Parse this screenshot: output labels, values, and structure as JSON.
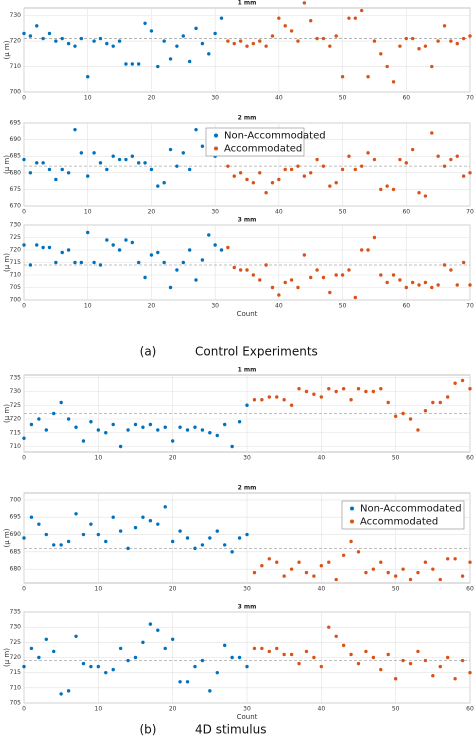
{
  "captions": [
    {
      "label": "(a)",
      "text": "Control Experiments"
    },
    {
      "label": "(b)",
      "text": "4D stimulus"
    }
  ],
  "chart_data": [
    {
      "type": "scatter",
      "title": "1 mm",
      "ylabel": "(μ m)",
      "xlim": [
        0,
        70
      ],
      "xticks": [
        0,
        10,
        20,
        30,
        40,
        50,
        60,
        70
      ],
      "ylim": [
        700,
        733
      ],
      "yticks": [
        700,
        710,
        720,
        730
      ],
      "grid": true,
      "reference_line": 721,
      "series": [
        {
          "name": "Non-Accommodated",
          "color": "#0072bd",
          "x": [
            0,
            1,
            2,
            3,
            4,
            5,
            6,
            7,
            8,
            9,
            10,
            11,
            12,
            13,
            14,
            15,
            16,
            17,
            18,
            19,
            20,
            21,
            22,
            23,
            24,
            25,
            26,
            27,
            28,
            29,
            30,
            31
          ],
          "values": [
            723,
            722,
            726,
            721,
            723,
            720,
            721,
            719,
            718,
            721,
            706,
            720,
            721,
            719,
            718,
            720,
            711,
            711,
            711,
            727,
            724,
            710,
            720,
            713,
            718,
            722,
            712,
            725,
            719,
            715,
            723,
            729
          ]
        },
        {
          "name": "Accommodated",
          "color": "#d95319",
          "x": [
            32,
            33,
            34,
            35,
            36,
            37,
            38,
            39,
            40,
            41,
            42,
            43,
            44,
            45,
            46,
            47,
            48,
            49,
            50,
            51,
            52,
            53,
            54,
            55,
            56,
            57,
            58,
            59,
            60,
            61,
            62,
            63,
            64,
            65,
            66,
            67,
            68,
            69,
            70
          ],
          "values": [
            720,
            719,
            720,
            718,
            719,
            720,
            718,
            722,
            729,
            726,
            724,
            720,
            735,
            728,
            721,
            721,
            718,
            722,
            706,
            729,
            729,
            732,
            706,
            720,
            715,
            710,
            704,
            718,
            721,
            721,
            717,
            718,
            710,
            720,
            726,
            720,
            719,
            721,
            722
          ]
        }
      ]
    },
    {
      "type": "scatter",
      "title": "2 mm",
      "ylabel": "(μ m)",
      "xlim": [
        0,
        70
      ],
      "xticks": [
        0,
        10,
        20,
        30,
        40,
        50,
        60,
        70
      ],
      "ylim": [
        670,
        695
      ],
      "yticks": [
        670,
        675,
        680,
        685,
        690,
        695
      ],
      "grid": true,
      "reference_line": 682,
      "legend": "center",
      "series": [
        {
          "name": "Non-Accommodated",
          "color": "#0072bd",
          "x": [
            0,
            1,
            2,
            3,
            4,
            5,
            6,
            7,
            8,
            9,
            10,
            11,
            12,
            13,
            14,
            15,
            16,
            17,
            18,
            19,
            20,
            21,
            22,
            23,
            24,
            25,
            26,
            27,
            28,
            29,
            30,
            31
          ],
          "values": [
            684,
            680,
            683,
            683,
            681,
            678,
            681,
            680,
            693,
            686,
            679,
            686,
            683,
            681,
            685,
            684,
            684,
            685,
            683,
            683,
            681,
            676,
            677,
            687,
            682,
            686,
            681,
            693,
            688,
            690,
            685,
            688
          ]
        },
        {
          "name": "Accommodated",
          "color": "#d95319",
          "x": [
            32,
            33,
            34,
            35,
            36,
            37,
            38,
            39,
            40,
            41,
            42,
            43,
            44,
            45,
            46,
            47,
            48,
            49,
            50,
            51,
            52,
            53,
            54,
            55,
            56,
            57,
            58,
            59,
            60,
            61,
            62,
            63,
            64,
            65,
            66,
            67,
            68,
            69,
            70
          ],
          "values": [
            682,
            679,
            680,
            678,
            677,
            680,
            674,
            677,
            678,
            681,
            681,
            682,
            679,
            680,
            684,
            682,
            676,
            677,
            681,
            685,
            681,
            682,
            686,
            684,
            675,
            676,
            675,
            684,
            683,
            687,
            674,
            673,
            692,
            685,
            682,
            684,
            685,
            679,
            680
          ]
        }
      ]
    },
    {
      "type": "scatter",
      "title": "3 mm",
      "ylabel": "(μ m)",
      "xlabel": "Count",
      "xlim": [
        0,
        70
      ],
      "xticks": [
        0,
        10,
        20,
        30,
        40,
        50,
        60,
        70
      ],
      "ylim": [
        700,
        730
      ],
      "yticks": [
        700,
        705,
        710,
        715,
        720,
        725,
        730
      ],
      "grid": true,
      "reference_line": 714,
      "series": [
        {
          "name": "Non-Accommodated",
          "color": "#0072bd",
          "x": [
            0,
            1,
            2,
            3,
            4,
            5,
            6,
            7,
            8,
            9,
            10,
            11,
            12,
            13,
            14,
            15,
            16,
            17,
            18,
            19,
            20,
            21,
            22,
            23,
            24,
            25,
            26,
            27,
            28,
            29,
            30,
            31
          ],
          "values": [
            722,
            714,
            722,
            721,
            721,
            715,
            719,
            720,
            715,
            715,
            727,
            715,
            714,
            724,
            722,
            720,
            724,
            723,
            715,
            709,
            718,
            719,
            715,
            705,
            712,
            715,
            720,
            708,
            716,
            726,
            722,
            720
          ]
        },
        {
          "name": "Accommodated",
          "color": "#d95319",
          "x": [
            32,
            33,
            34,
            35,
            36,
            37,
            38,
            39,
            40,
            41,
            42,
            43,
            44,
            45,
            46,
            47,
            48,
            49,
            50,
            51,
            52,
            53,
            54,
            55,
            56,
            57,
            58,
            59,
            60,
            61,
            62,
            63,
            64,
            65,
            66,
            67,
            68,
            69,
            70
          ],
          "values": [
            721,
            713,
            712,
            712,
            710,
            708,
            714,
            705,
            702,
            707,
            708,
            705,
            718,
            709,
            712,
            709,
            703,
            710,
            710,
            712,
            701,
            720,
            720,
            725,
            710,
            707,
            710,
            708,
            705,
            707,
            706,
            707,
            705,
            706,
            714,
            712,
            706,
            715,
            706
          ]
        }
      ]
    },
    {
      "type": "scatter",
      "title": "1 mm",
      "ylabel": "(μ m)",
      "xlim": [
        0,
        60
      ],
      "xticks": [
        0,
        10,
        20,
        30,
        40,
        50,
        60
      ],
      "ylim": [
        708,
        736
      ],
      "yticks": [
        710,
        715,
        720,
        725,
        730,
        735
      ],
      "grid": true,
      "reference_line": 722,
      "series": [
        {
          "name": "Non-Accommodated",
          "color": "#0072bd",
          "x": [
            0,
            1,
            2,
            3,
            4,
            5,
            6,
            7,
            8,
            9,
            10,
            11,
            12,
            13,
            14,
            15,
            16,
            17,
            18,
            19,
            20,
            21,
            22,
            23,
            24,
            25,
            26,
            27,
            28,
            29,
            30
          ],
          "values": [
            713,
            718,
            720,
            716,
            722,
            726,
            720,
            717,
            712,
            719,
            716,
            715,
            718,
            710,
            716,
            718,
            717,
            718,
            716,
            717,
            712,
            717,
            716,
            717,
            716,
            715,
            714,
            718,
            710,
            719,
            725
          ]
        },
        {
          "name": "Accommodated",
          "color": "#d95319",
          "x": [
            31,
            32,
            33,
            34,
            35,
            36,
            37,
            38,
            39,
            40,
            41,
            42,
            43,
            44,
            45,
            46,
            47,
            48,
            49,
            50,
            51,
            52,
            53,
            54,
            55,
            56,
            57,
            58,
            59,
            60
          ],
          "values": [
            727,
            727,
            728,
            728,
            727,
            725,
            731,
            730,
            729,
            728,
            731,
            730,
            731,
            727,
            731,
            730,
            730,
            731,
            726,
            721,
            722,
            720,
            716,
            723,
            726,
            726,
            728,
            733,
            734,
            731
          ]
        }
      ]
    },
    {
      "type": "scatter",
      "title": "2 mm",
      "ylabel": "(μ m)",
      "xlim": [
        0,
        60
      ],
      "xticks": [
        0,
        10,
        20,
        30,
        40,
        50,
        60
      ],
      "ylim": [
        676,
        702
      ],
      "yticks": [
        680,
        685,
        690,
        695,
        700
      ],
      "grid": true,
      "reference_line": 686,
      "legend": "right",
      "series": [
        {
          "name": "Non-Accommodated",
          "color": "#0072bd",
          "x": [
            0,
            1,
            2,
            3,
            4,
            5,
            6,
            7,
            8,
            9,
            10,
            11,
            12,
            13,
            14,
            15,
            16,
            17,
            18,
            19,
            20,
            21,
            22,
            23,
            24,
            25,
            26,
            27,
            28,
            29,
            30
          ],
          "values": [
            689,
            695,
            693,
            690,
            687,
            687,
            688,
            696,
            690,
            693,
            690,
            688,
            695,
            691,
            686,
            692,
            695,
            694,
            693,
            698,
            688,
            691,
            689,
            686,
            687,
            689,
            691,
            687,
            685,
            689,
            690
          ]
        },
        {
          "name": "Accommodated",
          "color": "#d95319",
          "x": [
            31,
            32,
            33,
            34,
            35,
            36,
            37,
            38,
            39,
            40,
            41,
            42,
            43,
            44,
            45,
            46,
            47,
            48,
            49,
            50,
            51,
            52,
            53,
            54,
            55,
            56,
            57,
            58,
            59,
            60
          ],
          "values": [
            679,
            681,
            683,
            682,
            678,
            680,
            682,
            679,
            678,
            681,
            682,
            677,
            684,
            688,
            685,
            679,
            680,
            682,
            679,
            678,
            680,
            677,
            679,
            682,
            680,
            677,
            683,
            683,
            678,
            682
          ]
        }
      ]
    },
    {
      "type": "scatter",
      "title": "3 mm",
      "ylabel": "(μ m)",
      "xlabel": "Count",
      "xlim": [
        0,
        60
      ],
      "xticks": [
        0,
        10,
        20,
        30,
        40,
        50,
        60
      ],
      "ylim": [
        705,
        735
      ],
      "yticks": [
        705,
        710,
        715,
        720,
        725,
        730,
        735
      ],
      "grid": true,
      "reference_line": 719,
      "series": [
        {
          "name": "Non-Accommodated",
          "color": "#0072bd",
          "x": [
            0,
            1,
            2,
            3,
            4,
            5,
            6,
            7,
            8,
            9,
            10,
            11,
            12,
            13,
            14,
            15,
            16,
            17,
            18,
            19,
            20,
            21,
            22,
            23,
            24,
            25,
            26,
            27,
            28,
            29,
            30
          ],
          "values": [
            717,
            723,
            720,
            726,
            722,
            708,
            709,
            727,
            718,
            717,
            717,
            715,
            716,
            723,
            719,
            720,
            725,
            731,
            729,
            723,
            726,
            712,
            712,
            717,
            719,
            709,
            715,
            724,
            720,
            720,
            717
          ]
        },
        {
          "name": "Accommodated",
          "color": "#d95319",
          "x": [
            31,
            32,
            33,
            34,
            35,
            36,
            37,
            38,
            39,
            40,
            41,
            42,
            43,
            44,
            45,
            46,
            47,
            48,
            49,
            50,
            51,
            52,
            53,
            54,
            55,
            56,
            57,
            58,
            59,
            60
          ],
          "values": [
            723,
            723,
            722,
            723,
            721,
            721,
            718,
            722,
            720,
            717,
            730,
            727,
            724,
            721,
            718,
            722,
            720,
            716,
            721,
            713,
            719,
            718,
            722,
            719,
            714,
            717,
            720,
            713,
            719,
            715
          ]
        }
      ]
    }
  ]
}
